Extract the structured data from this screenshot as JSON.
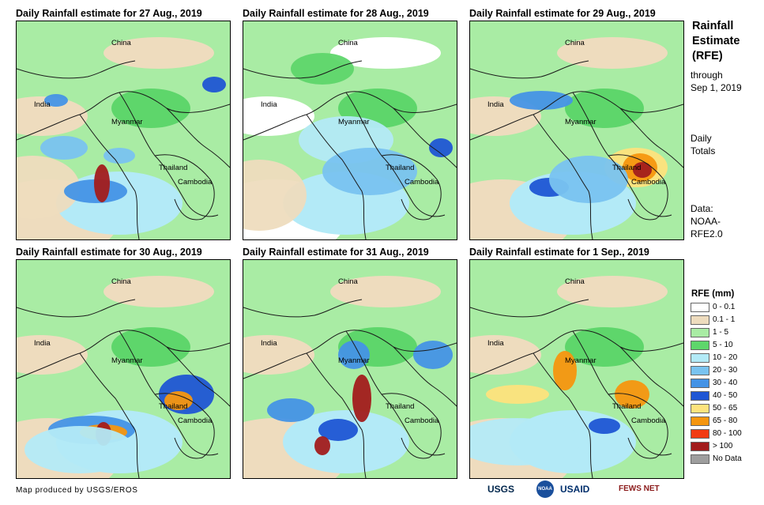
{
  "panels": [
    {
      "title": "Daily Rainfall estimate for 27 Aug., 2019"
    },
    {
      "title": "Daily Rainfall estimate for 28 Aug., 2019"
    },
    {
      "title": "Daily Rainfall estimate for 29 Aug., 2019"
    },
    {
      "title": "Daily Rainfall estimate for 30 Aug., 2019"
    },
    {
      "title": "Daily Rainfall estimate for 31 Aug., 2019"
    },
    {
      "title": "Daily Rainfall estimate for 1  Sep., 2019"
    }
  ],
  "places": {
    "china": "China",
    "india": "India",
    "myanmar": "Myanmar",
    "thailand": "Thailand",
    "cambodia": "Cambodia"
  },
  "side": {
    "title": [
      "Rainfall",
      "Estimate",
      "(RFE)"
    ],
    "through": [
      "through",
      "Sep 1, 2019"
    ],
    "totals": [
      "Daily",
      "Totals"
    ],
    "source": [
      "Data:",
      "NOAA-",
      "RFE2.0"
    ]
  },
  "legend": {
    "title": "RFE (mm)",
    "items": [
      {
        "label": "0 - 0.1",
        "color": "#ffffff"
      },
      {
        "label": "0.1 - 1",
        "color": "#eedcbe"
      },
      {
        "label": "1 - 5",
        "color": "#a9eca4"
      },
      {
        "label": "5 - 10",
        "color": "#5ed66b"
      },
      {
        "label": "10 - 20",
        "color": "#b3eaf7"
      },
      {
        "label": "20 - 30",
        "color": "#79c3f0"
      },
      {
        "label": "30 - 40",
        "color": "#4493e6"
      },
      {
        "label": "40 - 50",
        "color": "#1f56d4"
      },
      {
        "label": "50 - 65",
        "color": "#fde37d"
      },
      {
        "label": "65 - 80",
        "color": "#f6960f"
      },
      {
        "label": "80 - 100",
        "color": "#f13b13"
      },
      {
        "label": "> 100",
        "color": "#a21c1c"
      },
      {
        "label": "No Data",
        "color": "#9e9e9e"
      }
    ]
  },
  "footer": {
    "credit": "Map produced by USGS/EROS",
    "logos": [
      "USGS",
      "NOAA",
      "USAID",
      "FEWS NET"
    ]
  }
}
